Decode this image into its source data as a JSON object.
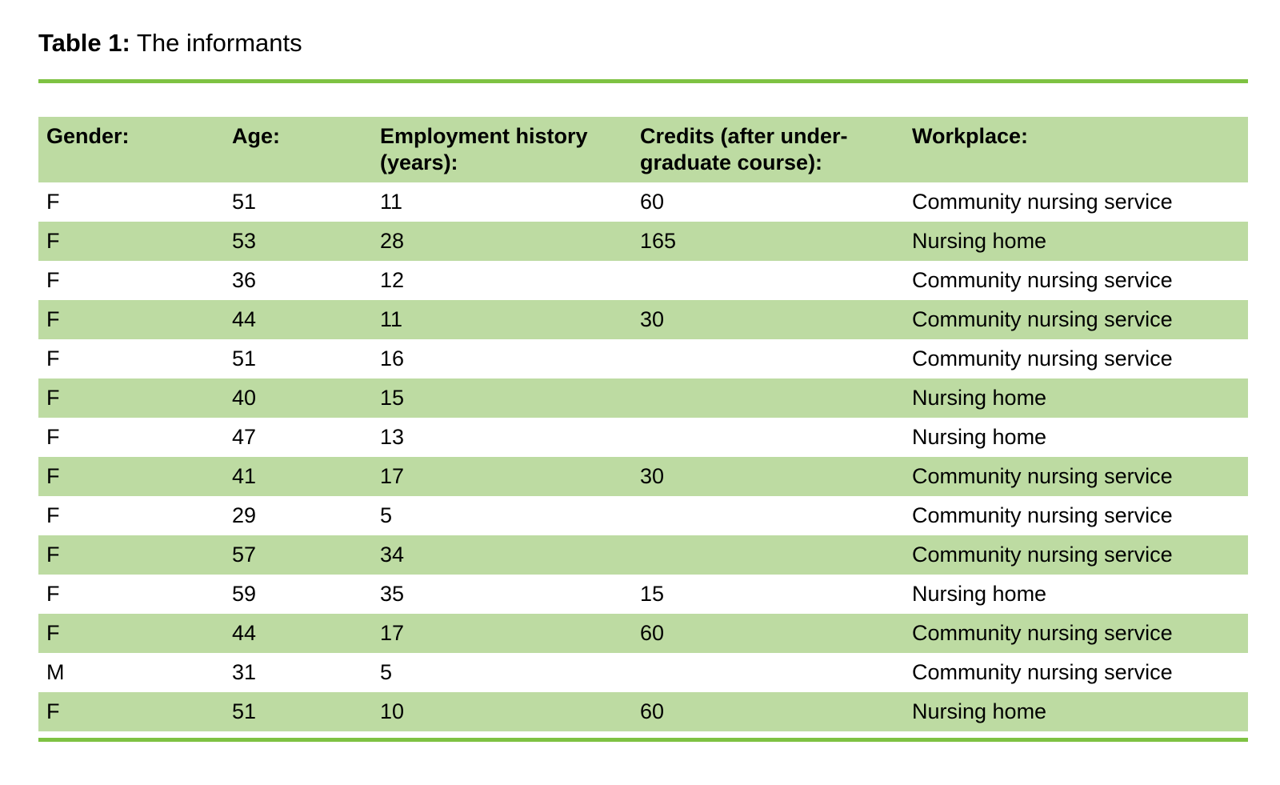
{
  "title": {
    "label": "Table 1:",
    "text": " The informants"
  },
  "colors": {
    "band_green": "#bddba2",
    "rule_green": "#7ec242",
    "text": "#000000"
  },
  "table": {
    "columns": [
      "Gender:",
      "Age:",
      "Employment history\n(years):",
      "Credits (after under-\ngraduate course):",
      "Workplace:"
    ],
    "row_keys": [
      "gender",
      "age",
      "employment",
      "credits",
      "workplace"
    ],
    "rows": [
      {
        "gender": "F",
        "age": "51",
        "employment": "11",
        "credits": "60",
        "workplace": "Community nursing service"
      },
      {
        "gender": "F",
        "age": "53",
        "employment": "28",
        "credits": "165",
        "workplace": "Nursing home"
      },
      {
        "gender": "F",
        "age": "36",
        "employment": "12",
        "credits": "",
        "workplace": "Community nursing service"
      },
      {
        "gender": "F",
        "age": "44",
        "employment": "11",
        "credits": "30",
        "workplace": "Community nursing service"
      },
      {
        "gender": "F",
        "age": "51",
        "employment": "16",
        "credits": "",
        "workplace": "Community nursing service"
      },
      {
        "gender": "F",
        "age": "40",
        "employment": "15",
        "credits": "",
        "workplace": "Nursing home"
      },
      {
        "gender": "F",
        "age": "47",
        "employment": "13",
        "credits": "",
        "workplace": "Nursing home"
      },
      {
        "gender": "F",
        "age": "41",
        "employment": "17",
        "credits": "30",
        "workplace": "Community nursing service"
      },
      {
        "gender": "F",
        "age": "29",
        "employment": "5",
        "credits": "",
        "workplace": "Community nursing service"
      },
      {
        "gender": "F",
        "age": "57",
        "employment": "34",
        "credits": "",
        "workplace": "Community nursing service"
      },
      {
        "gender": "F",
        "age": "59",
        "employment": "35",
        "credits": "15",
        "workplace": "Nursing home"
      },
      {
        "gender": "F",
        "age": "44",
        "employment": "17",
        "credits": "60",
        "workplace": "Community nursing service"
      },
      {
        "gender": "M",
        "age": "31",
        "employment": "5",
        "credits": "",
        "workplace": "Community nursing service"
      },
      {
        "gender": "F",
        "age": "51",
        "employment": "10",
        "credits": "60",
        "workplace": "Nursing home"
      }
    ]
  }
}
